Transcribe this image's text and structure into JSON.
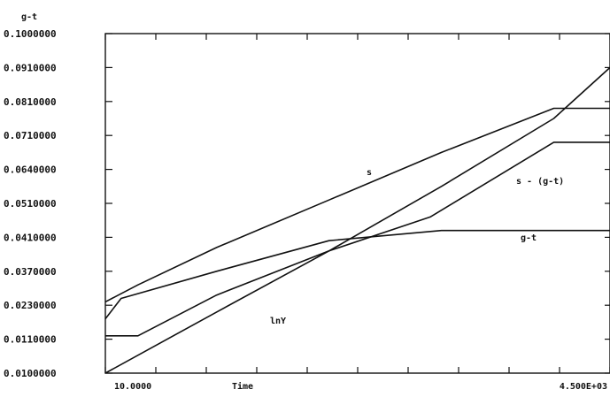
{
  "chart_data": {
    "type": "line",
    "ylabel": "g-t",
    "xlabel": "Time",
    "y_ticks": [
      "0.1000000",
      "0.0910000",
      "0.0810000",
      "0.0710000",
      "0.0640000",
      "0.0510000",
      "0.0410000",
      "0.0370000",
      "0.0230000",
      "0.0110000",
      "0.0100000"
    ],
    "x_ticks": [
      "10.0000",
      "4.500E+03"
    ],
    "xlim": [
      10,
      4500
    ],
    "ylim": [
      0.0,
      0.1
    ],
    "grid": false,
    "series": [
      {
        "name": "s",
        "x": [
          10,
          300,
          1000,
          2000,
          3000,
          4000,
          4500
        ],
        "y": [
          0.021,
          0.026,
          0.037,
          0.051,
          0.065,
          0.078,
          0.078
        ]
      },
      {
        "name": "s - (g-t)",
        "x": [
          10,
          300,
          1000,
          2000,
          2900,
          3500,
          4000,
          4500
        ],
        "y": [
          0.011,
          0.011,
          0.023,
          0.036,
          0.046,
          0.058,
          0.068,
          0.068
        ]
      },
      {
        "name": "g-t",
        "x": [
          10,
          150,
          1000,
          2000,
          3000,
          4500
        ],
        "y": [
          0.016,
          0.022,
          0.03,
          0.039,
          0.042,
          0.042
        ]
      },
      {
        "name": "lnY",
        "x": [
          10,
          1000,
          2000,
          3000,
          4000,
          4500
        ],
        "y": [
          0.0,
          0.018,
          0.036,
          0.055,
          0.075,
          0.09
        ]
      }
    ]
  }
}
